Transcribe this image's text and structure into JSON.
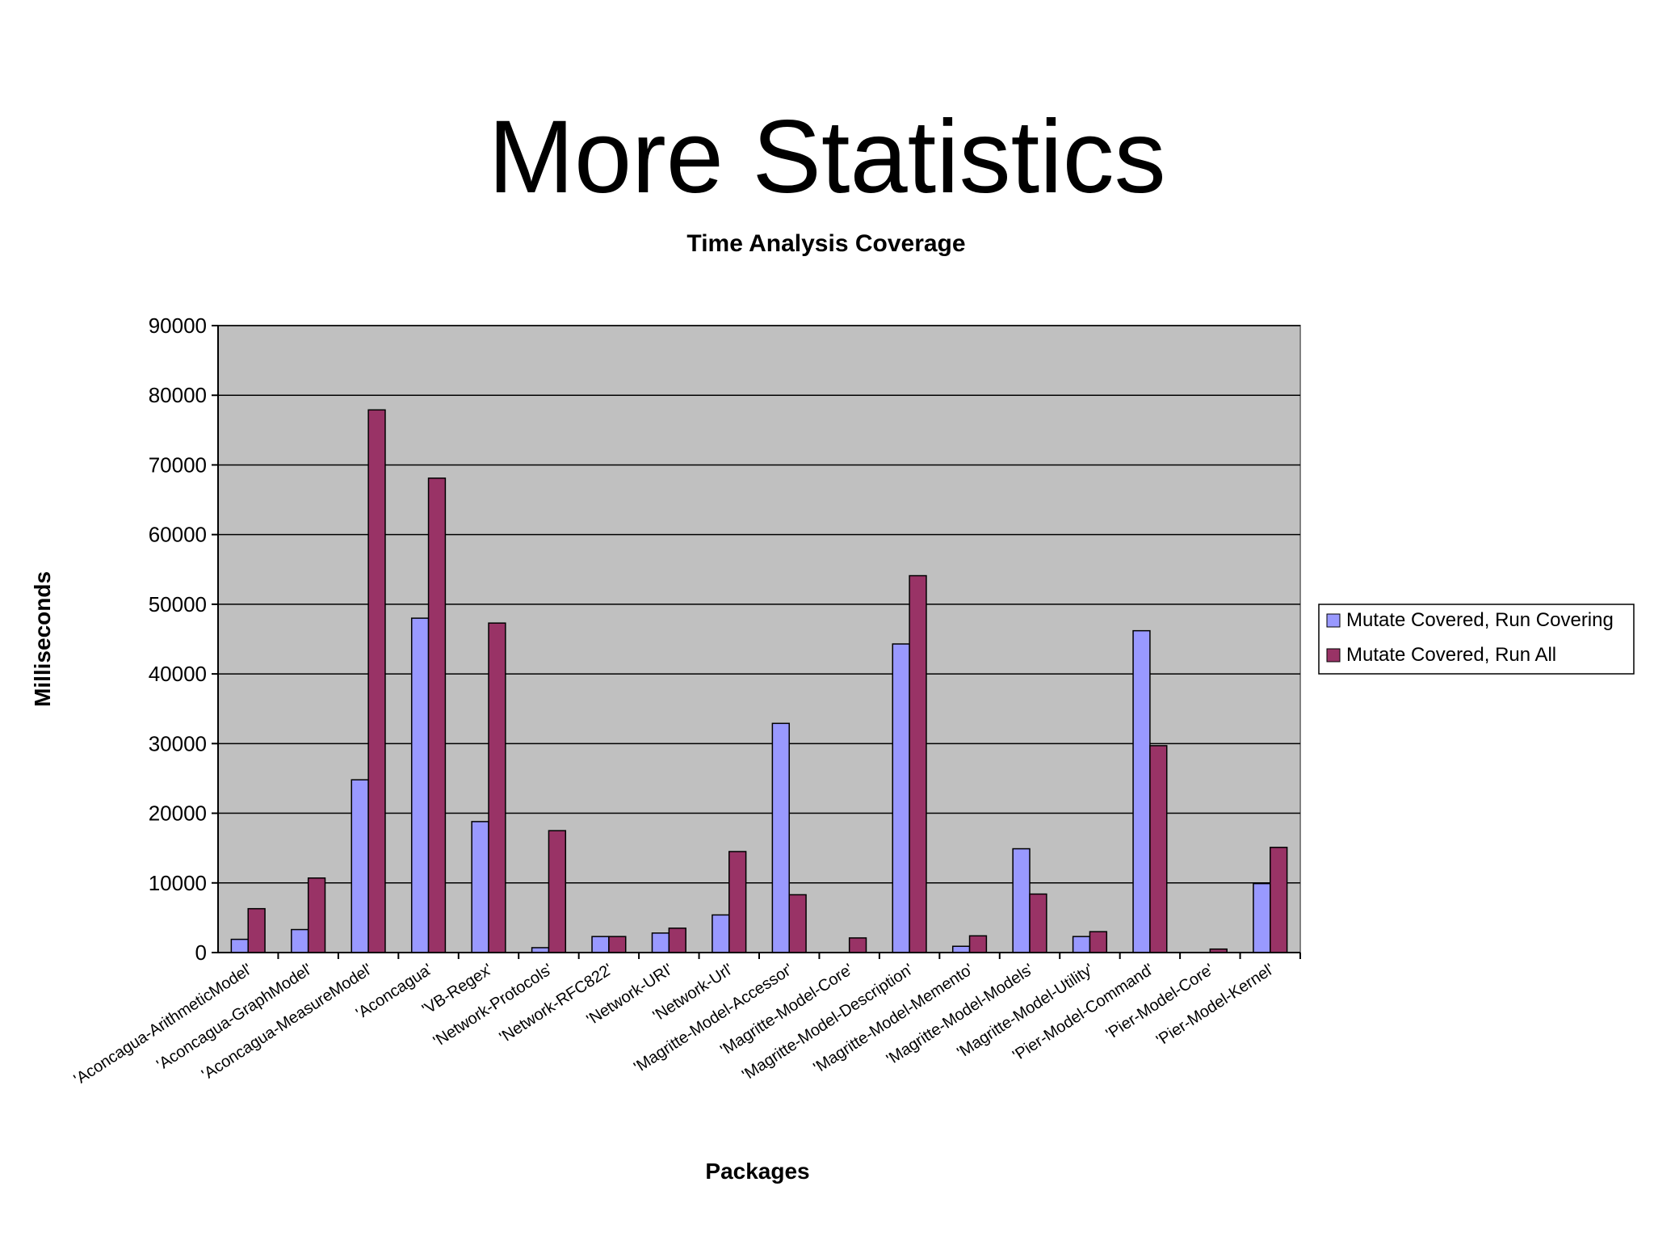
{
  "slide": {
    "title": "More Statistics"
  },
  "chart_data": {
    "type": "bar",
    "title": "Time Analysis Coverage",
    "xlabel": "Packages",
    "ylabel": "Milliseconds",
    "ylim": [
      0,
      90000
    ],
    "yticks": [
      0,
      10000,
      20000,
      30000,
      40000,
      50000,
      60000,
      70000,
      80000,
      90000
    ],
    "grid": true,
    "legend_position": "right",
    "categories": [
      "'Aconcagua-ArithmeticModel'",
      "'Aconcagua-GraphModel'",
      "'Aconcagua-MeasureModel'",
      "'Aconcagua'",
      "'VB-Regex'",
      "'Network-Protocols'",
      "'Network-RFC822'",
      "'Network-URI'",
      "'Network-Url'",
      "'Magritte-Model-Accessor'",
      "'Magritte-Model-Core'",
      "'Magritte-Model-Description'",
      "'Magritte-Model-Memento'",
      "'Magritte-Model-Models'",
      "'Magritte-Model-Utility'",
      "'Pier-Model-Command'",
      "'Pier-Model-Core'",
      "'Pier-Model-Kernel'"
    ],
    "series": [
      {
        "name": "Mutate Covered, Run Covering",
        "color": "#9999ff",
        "values": [
          1900,
          3300,
          24800,
          48000,
          18800,
          700,
          2300,
          2800,
          5400,
          32900,
          0,
          44300,
          900,
          14900,
          2300,
          46200,
          0,
          9900
        ]
      },
      {
        "name": "Mutate Covered, Run All",
        "color": "#993366",
        "values": [
          6300,
          10700,
          77900,
          68100,
          47300,
          17500,
          2300,
          3500,
          14500,
          8300,
          2100,
          54100,
          2400,
          8400,
          3000,
          29700,
          500,
          15100
        ]
      }
    ],
    "plot_background": "#c0c0c0",
    "gridline_color": "#000000"
  }
}
